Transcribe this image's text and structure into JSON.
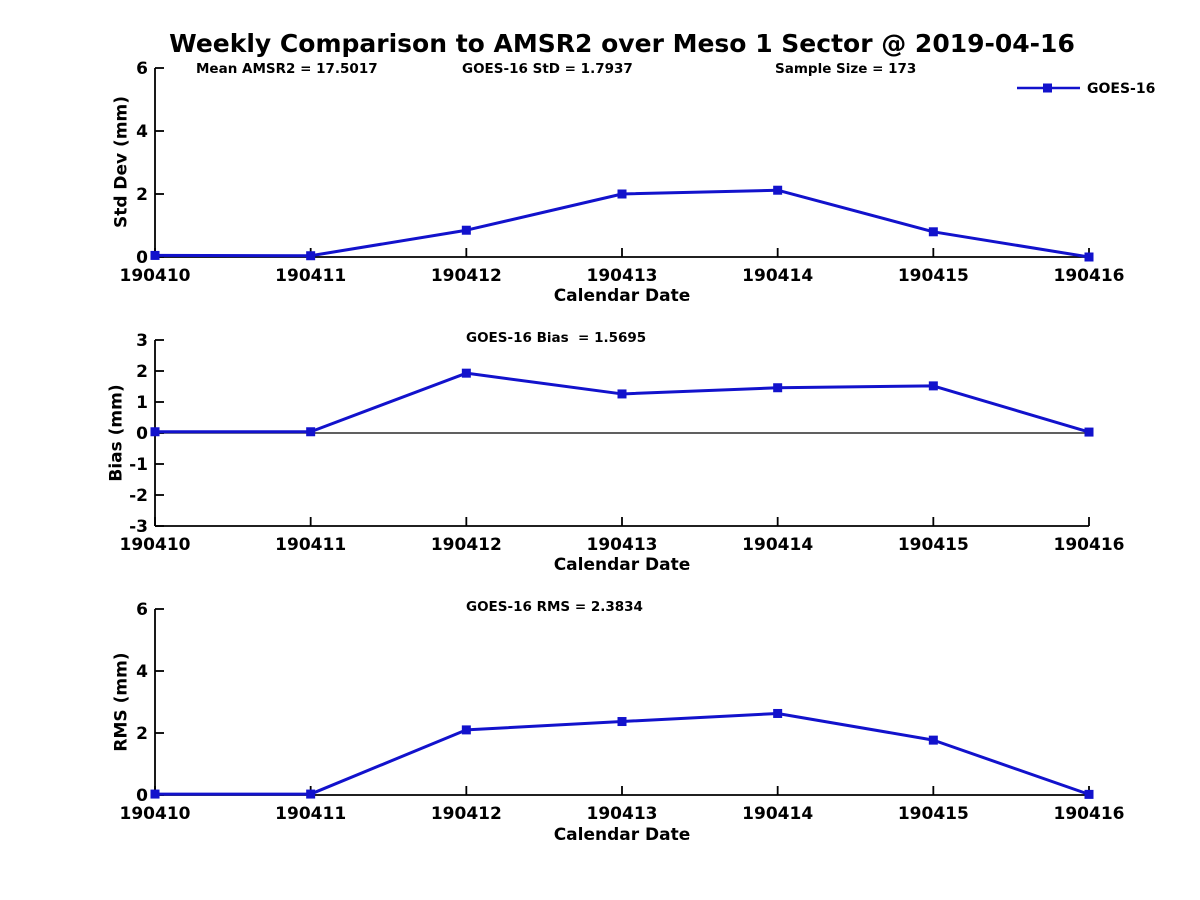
{
  "header": {
    "title": "Weekly Comparison to AMSR2 over Meso 1 Sector @ 2019-04-16"
  },
  "stats": {
    "mean_amsr2": "Mean AMSR2 = 17.5017",
    "goes16_std": "GOES-16 StD = 1.7937",
    "sample_size": "Sample Size = 173"
  },
  "legend": {
    "label": "GOES-16",
    "position": "top-right"
  },
  "colors": {
    "line": "#1212CC",
    "axis": "#000000",
    "text": "#000000",
    "background": "#FFFFFF"
  },
  "chart_data": {
    "type": "line",
    "title": "Weekly Comparison to AMSR2 over Meso 1 Sector @ 2019-04-16",
    "categories": [
      "190410",
      "190411",
      "190412",
      "190413",
      "190414",
      "190415",
      "190416"
    ],
    "series_name": "GOES-16",
    "marker": "filled-square",
    "line_color": "#1212CC",
    "grid": false,
    "plots": [
      {
        "name": "std-dev",
        "ylabel": "Std Dev (mm)",
        "xlabel": "Calendar Date",
        "ylim": [
          0,
          6
        ],
        "yticks": [
          0,
          2,
          4,
          6
        ],
        "values": [
          0.05,
          0.04,
          0.85,
          2.0,
          2.12,
          0.8,
          0.0
        ],
        "annotation": "",
        "zero_line": false
      },
      {
        "name": "bias",
        "ylabel": "Bias (mm)",
        "xlabel": "Calendar Date",
        "ylim": [
          -3,
          3
        ],
        "yticks": [
          -3,
          -2,
          -1,
          0,
          1,
          2,
          3
        ],
        "values": [
          0.04,
          0.04,
          1.93,
          1.26,
          1.46,
          1.52,
          0.03
        ],
        "annotation": "GOES-16 Bias  = 1.5695",
        "zero_line": true
      },
      {
        "name": "rms",
        "ylabel": "RMS (mm)",
        "xlabel": "Calendar Date",
        "ylim": [
          0,
          6
        ],
        "yticks": [
          0,
          2,
          4,
          6
        ],
        "values": [
          0.03,
          0.03,
          2.1,
          2.37,
          2.63,
          1.77,
          0.02
        ],
        "annotation": "GOES-16 RMS = 2.3834",
        "zero_line": false
      }
    ]
  }
}
